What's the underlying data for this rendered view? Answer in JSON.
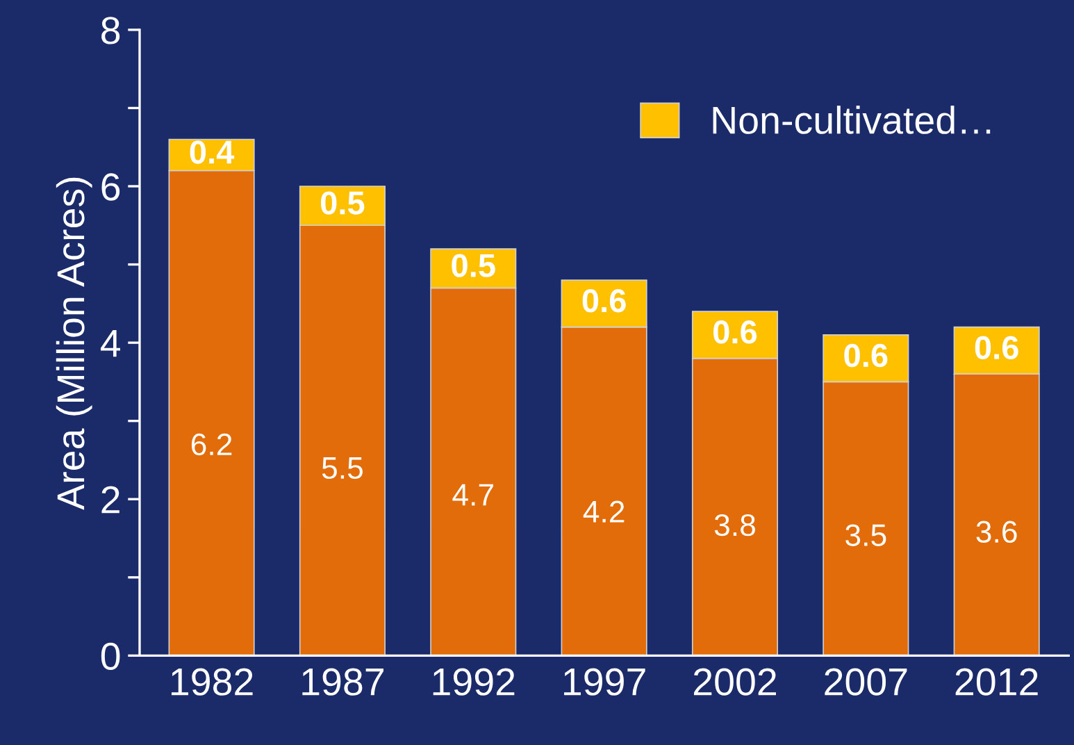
{
  "chart_data": {
    "type": "bar",
    "stacked": true,
    "ylabel": "Area (Million Acres)",
    "categories": [
      "1982",
      "1987",
      "1992",
      "1997",
      "2002",
      "2007",
      "2012"
    ],
    "series": [
      {
        "color": "#e36c0a",
        "values": [
          6.2,
          5.5,
          4.7,
          4.2,
          3.8,
          3.5,
          3.6
        ]
      },
      {
        "name": "Non-cultivated…",
        "color": "#ffc000",
        "values": [
          0.4,
          0.5,
          0.5,
          0.6,
          0.6,
          0.6,
          0.6
        ]
      }
    ],
    "ylim": [
      0,
      8
    ],
    "yticks": [
      0,
      {
        "value": 1,
        "label": null
      },
      2,
      {
        "value": 3,
        "label": null
      },
      4,
      {
        "value": 5,
        "label": null
      },
      6,
      {
        "value": 7,
        "label": null
      },
      8
    ],
    "data_labels": true,
    "grid": false,
    "legend": "top right"
  }
}
